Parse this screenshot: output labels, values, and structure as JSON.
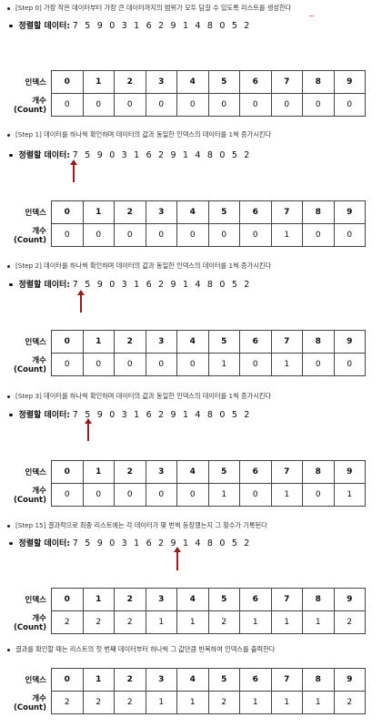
{
  "data_label": "정렬할 데이터:",
  "data_digits": "7 5 9 0 3 1 6 2 9 1 4 8 0 5 2",
  "row_labels": {
    "index": "인덱스",
    "count": "개수(Count)"
  },
  "indices": [
    "0",
    "1",
    "2",
    "3",
    "4",
    "5",
    "6",
    "7",
    "8",
    "9"
  ],
  "steps": [
    {
      "caption": "[Step 0] 가장 작은 데이터부터 가장 큰 데이터까지의 범위가 모두 담길 수 있도록 리스트를 생성한다",
      "counts": [
        "0",
        "0",
        "0",
        "0",
        "0",
        "0",
        "0",
        "0",
        "0",
        "0"
      ]
    },
    {
      "caption": "[Step 1] 데이터를 하나씩 확인하며 데이터의 값과 동일한 인덱스의 데이터를 1씩 증가시킨다",
      "counts": [
        "0",
        "0",
        "0",
        "0",
        "0",
        "0",
        "0",
        "1",
        "0",
        "0"
      ]
    },
    {
      "caption": "[Step 2] 데이터를 하나씩 확인하며 데이터의 값과 동일한 인덱스의 데이터를 1씩 증가시킨다",
      "counts": [
        "0",
        "0",
        "0",
        "0",
        "0",
        "1",
        "0",
        "1",
        "0",
        "0"
      ]
    },
    {
      "caption": "[Step 3] 데이터를 하나씩 확인하며 데이터의 값과 동일한 인덱스의 데이터를 1씩 증가시킨다",
      "counts": [
        "0",
        "0",
        "0",
        "0",
        "0",
        "1",
        "0",
        "1",
        "0",
        "1"
      ]
    },
    {
      "caption": "[Step 15] 결과적으로 최종 리스트에는 각 데이터가 몇 번씩 등장했는지 그 횟수가 기록된다",
      "counts": [
        "2",
        "2",
        "2",
        "1",
        "1",
        "2",
        "1",
        "1",
        "1",
        "2"
      ]
    }
  ],
  "final": {
    "caption": "결과를 확인할 때는 리스트의 첫 번째 데이터부터 하나씩 그 값만큼 반복하여 인덱스를 출력한다",
    "counts": [
      "2",
      "2",
      "2",
      "1",
      "1",
      "2",
      "1",
      "1",
      "1",
      "2"
    ]
  }
}
